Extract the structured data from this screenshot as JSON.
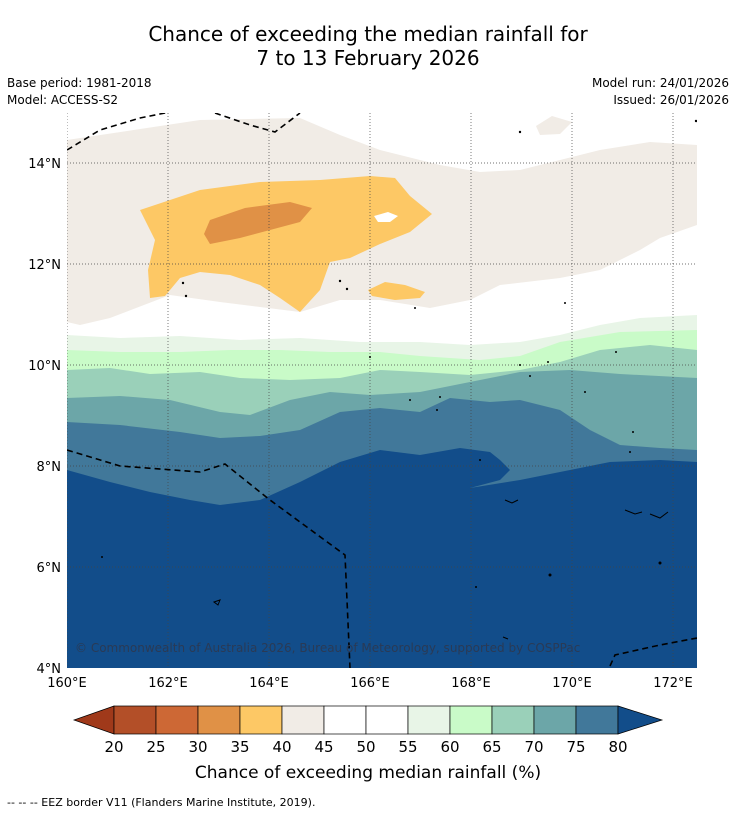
{
  "title_line1": "Chance of exceeding the median rainfall for",
  "title_line2": "7 to 13 February 2026",
  "meta": {
    "base_period": "Base period: 1981-2018",
    "model": "Model: ACCESS-S2",
    "model_run": "Model run: 24/01/2026",
    "issued": "Issued: 26/01/2026"
  },
  "map": {
    "lat_labels": [
      "14°N",
      "12°N",
      "10°N",
      "8°N",
      "6°N",
      "4°N"
    ],
    "lon_labels": [
      "160°E",
      "162°E",
      "164°E",
      "166°E",
      "168°E",
      "170°E",
      "172°E"
    ],
    "copyright": "© Commonwealth of Australia 2026, Bureau of Meteorology, supported by COSPPac"
  },
  "colorbar": {
    "ticks": [
      "20",
      "25",
      "30",
      "35",
      "40",
      "45",
      "50",
      "55",
      "60",
      "65",
      "70",
      "75",
      "80"
    ],
    "colors": [
      "#a0391a",
      "#b34f28",
      "#cd6835",
      "#e09146",
      "#fdc865",
      "#f1ece6",
      "#ffffff",
      "#ffffff",
      "#e8f5e7",
      "#c9fbc8",
      "#9ad0b9",
      "#6ca6a8",
      "#41789a",
      "#124d8a"
    ],
    "label": "Chance of exceeding median rainfall (%)"
  },
  "footer": "--  --  -- EEZ border V11 (Flanders Marine Institute, 2019)."
}
